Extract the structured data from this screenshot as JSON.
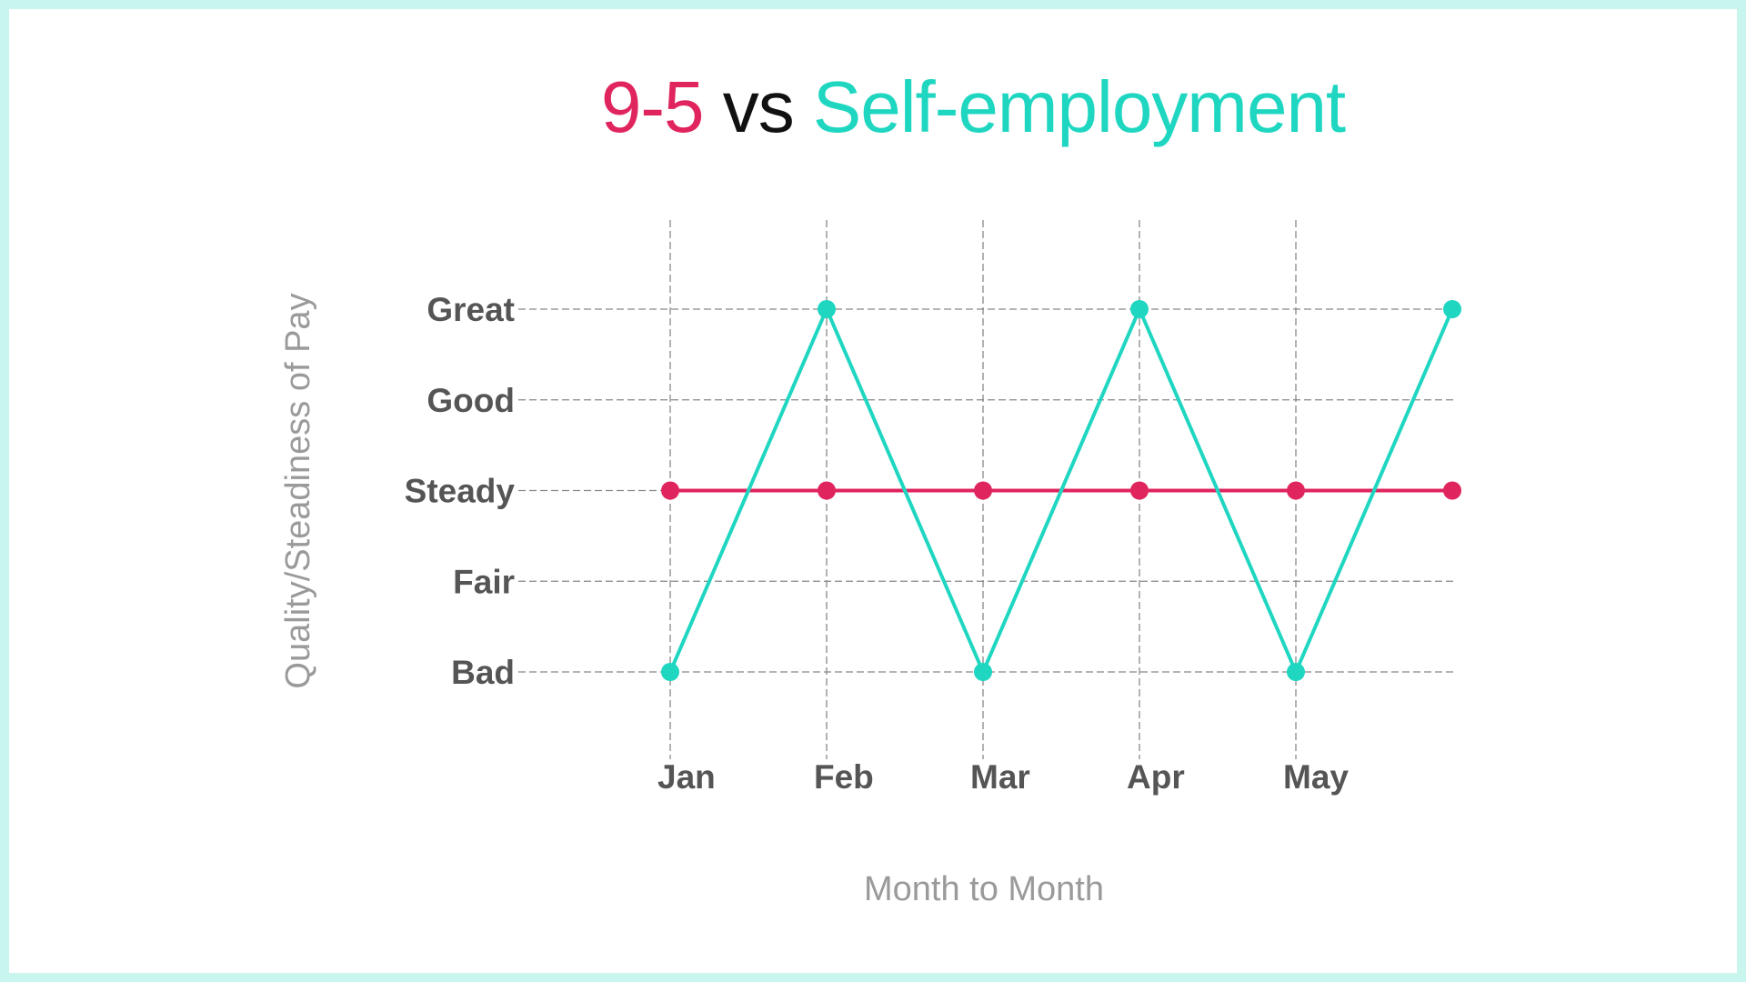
{
  "title": {
    "part1": "9-5",
    "part2": " vs ",
    "part3": "Self-employment"
  },
  "colors": {
    "nine_to_five": "#e0245e",
    "vs": "#111111",
    "self_employment": "#1fd6c1",
    "border": "#c8f5ee",
    "grid": "#888888"
  },
  "chart_data": {
    "type": "line",
    "xlabel": "Month to Month",
    "ylabel": "Quality/Steadiness of Pay",
    "categories": [
      "Jan",
      "Feb",
      "Mar",
      "Apr",
      "May",
      ""
    ],
    "y_levels": [
      "Bad",
      "Fair",
      "Steady",
      "Good",
      "Great"
    ],
    "ylim": [
      0,
      4
    ],
    "grid": true,
    "series": [
      {
        "name": "9-5",
        "color": "#e0245e",
        "values": [
          2,
          2,
          2,
          2,
          2,
          2
        ]
      },
      {
        "name": "Self-employment",
        "color": "#1fd6c1",
        "values": [
          0,
          4,
          0,
          4,
          0,
          4
        ]
      }
    ]
  }
}
